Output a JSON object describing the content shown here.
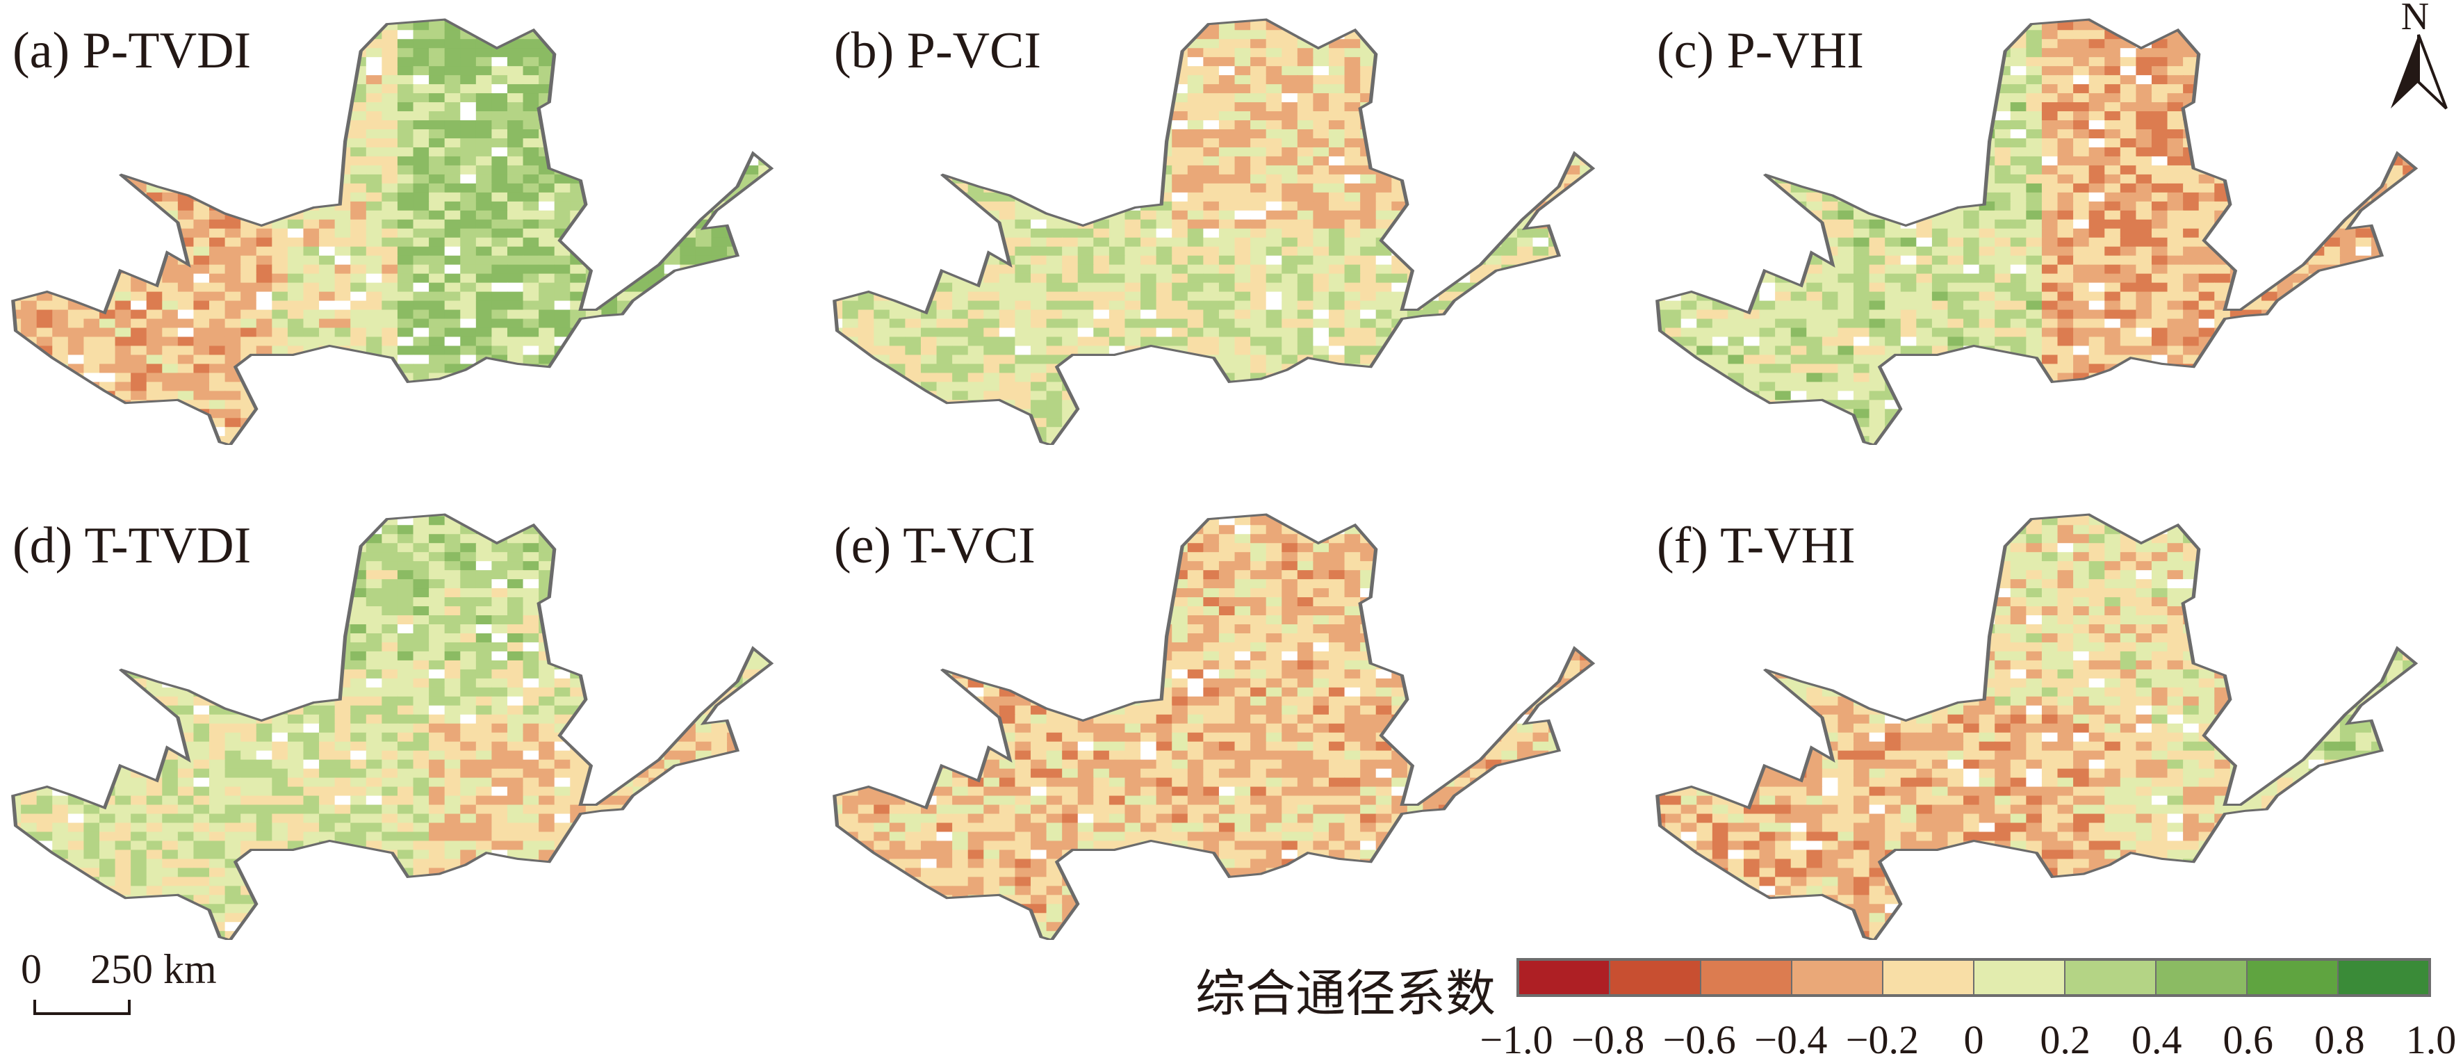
{
  "panels": [
    {
      "label": "(a) P-TVDI"
    },
    {
      "label": "(b) P-VCI"
    },
    {
      "label": "(c) P-VHI"
    },
    {
      "label": "(d) T-TVDI"
    },
    {
      "label": "(e) T-VCI"
    },
    {
      "label": "(f) T-VHI"
    }
  ],
  "north_arrow": {
    "label": "N"
  },
  "scale_bar": {
    "start": "0",
    "end": "250 km"
  },
  "legend": {
    "title": "综合通径系数",
    "ticks": [
      "−1.0",
      "−0.8",
      "−0.6",
      "−0.4",
      "−0.2",
      "0",
      "0.2",
      "0.4",
      "0.6",
      "0.8",
      "1.0"
    ],
    "colors": [
      "#ae1f24",
      "#c84f31",
      "#dc7c50",
      "#eaa878",
      "#f8dea6",
      "#e2ecae",
      "#b4d485",
      "#8bbb63",
      "#5fa440",
      "#3a8b38"
    ]
  },
  "boundary_color": "#6b6b6b"
}
